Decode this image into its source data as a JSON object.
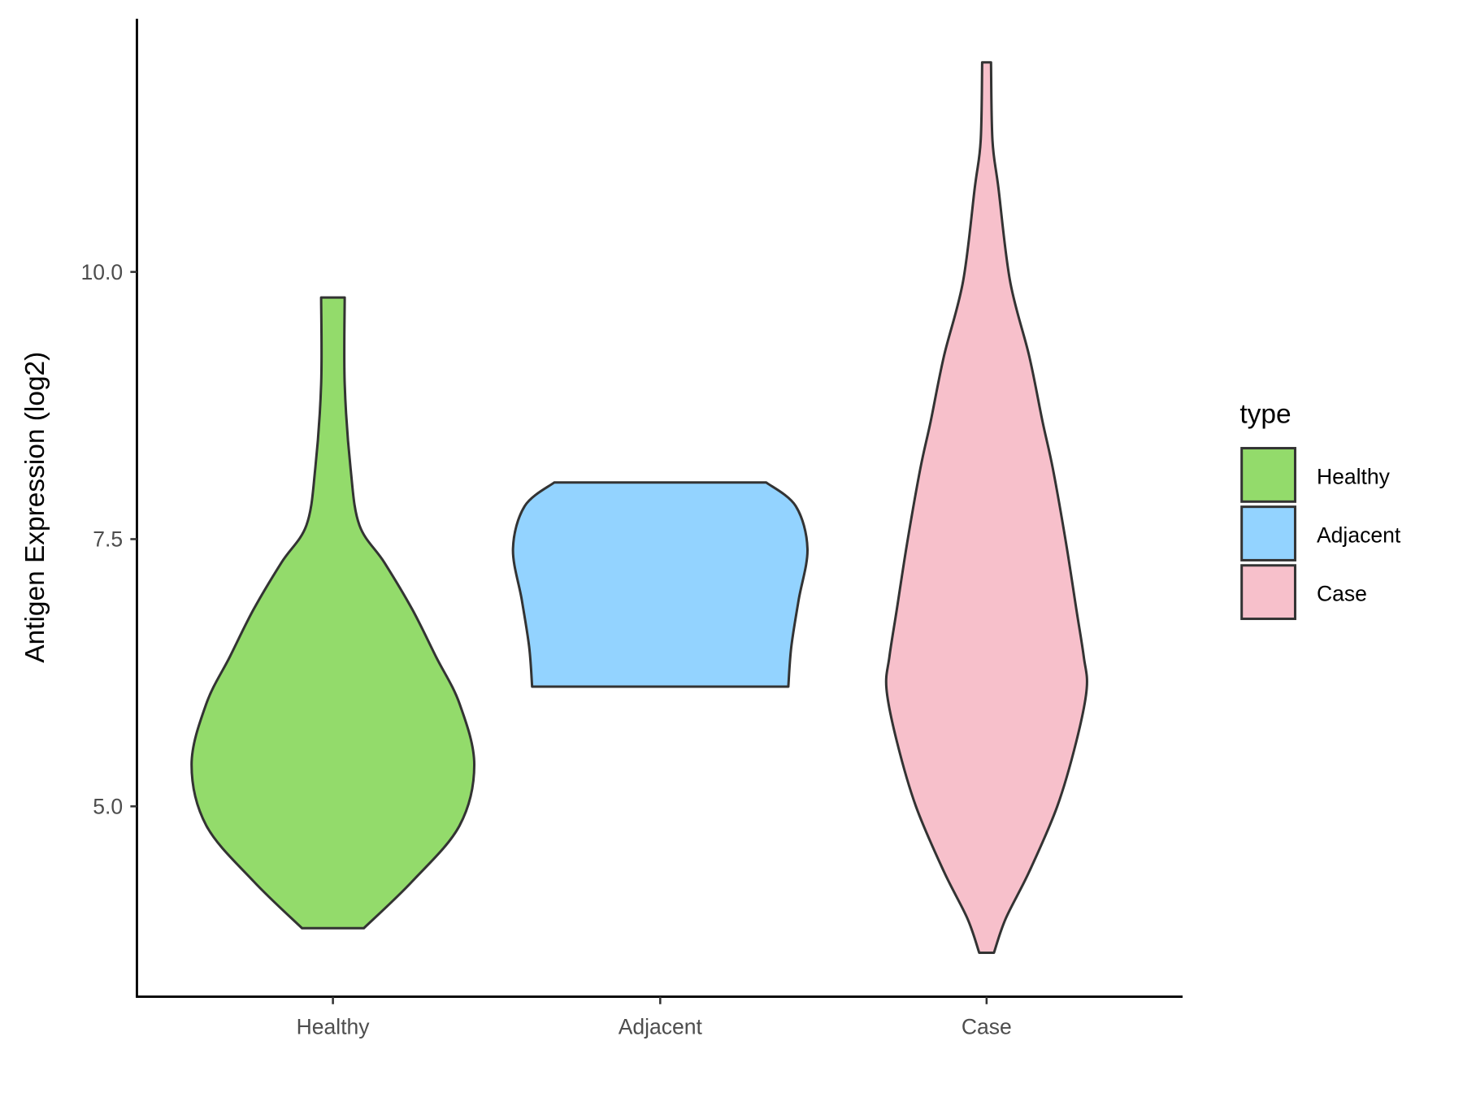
{
  "chart_data": {
    "type": "violin",
    "title": "",
    "xlabel": "",
    "ylabel": "Antigen Expression (log2)",
    "ylim": [
      3.3,
      12.3
    ],
    "yticks": [
      {
        "value": 5.0,
        "label": "5.0"
      },
      {
        "value": 7.5,
        "label": "7.5"
      },
      {
        "value": 10.0,
        "label": "10.0"
      }
    ],
    "categories": [
      "Healthy",
      "Adjacent",
      "Case"
    ],
    "legend": {
      "title": "type",
      "position": "right"
    },
    "series": [
      {
        "name": "Healthy",
        "color": "#93DB6B",
        "min": 3.86,
        "max": 9.76,
        "profile": [
          [
            9.76,
            0.08
          ],
          [
            8.95,
            0.08
          ],
          [
            8.16,
            0.12
          ],
          [
            7.63,
            0.18
          ],
          [
            7.28,
            0.35
          ],
          [
            6.84,
            0.54
          ],
          [
            6.4,
            0.7
          ],
          [
            5.96,
            0.86
          ],
          [
            5.39,
            0.96
          ],
          [
            4.82,
            0.86
          ],
          [
            4.3,
            0.54
          ],
          [
            3.86,
            0.21
          ]
        ]
      },
      {
        "name": "Adjacent",
        "color": "#93D3FF",
        "min": 6.12,
        "max": 8.03,
        "profile": [
          [
            8.03,
            0.72
          ],
          [
            7.81,
            0.92
          ],
          [
            7.41,
            1.0
          ],
          [
            6.93,
            0.94
          ],
          [
            6.49,
            0.89
          ],
          [
            6.12,
            0.87
          ]
        ]
      },
      {
        "name": "Case",
        "color": "#F7C0CB",
        "min": 3.63,
        "max": 11.96,
        "profile": [
          [
            11.96,
            0.03
          ],
          [
            11.23,
            0.04
          ],
          [
            10.79,
            0.08
          ],
          [
            9.91,
            0.16
          ],
          [
            9.21,
            0.29
          ],
          [
            8.6,
            0.38
          ],
          [
            8.16,
            0.45
          ],
          [
            7.46,
            0.54
          ],
          [
            6.84,
            0.61
          ],
          [
            6.4,
            0.66
          ],
          [
            6.1,
            0.68
          ],
          [
            5.61,
            0.61
          ],
          [
            5.0,
            0.48
          ],
          [
            4.39,
            0.29
          ],
          [
            3.95,
            0.13
          ],
          [
            3.63,
            0.05
          ]
        ]
      }
    ]
  }
}
